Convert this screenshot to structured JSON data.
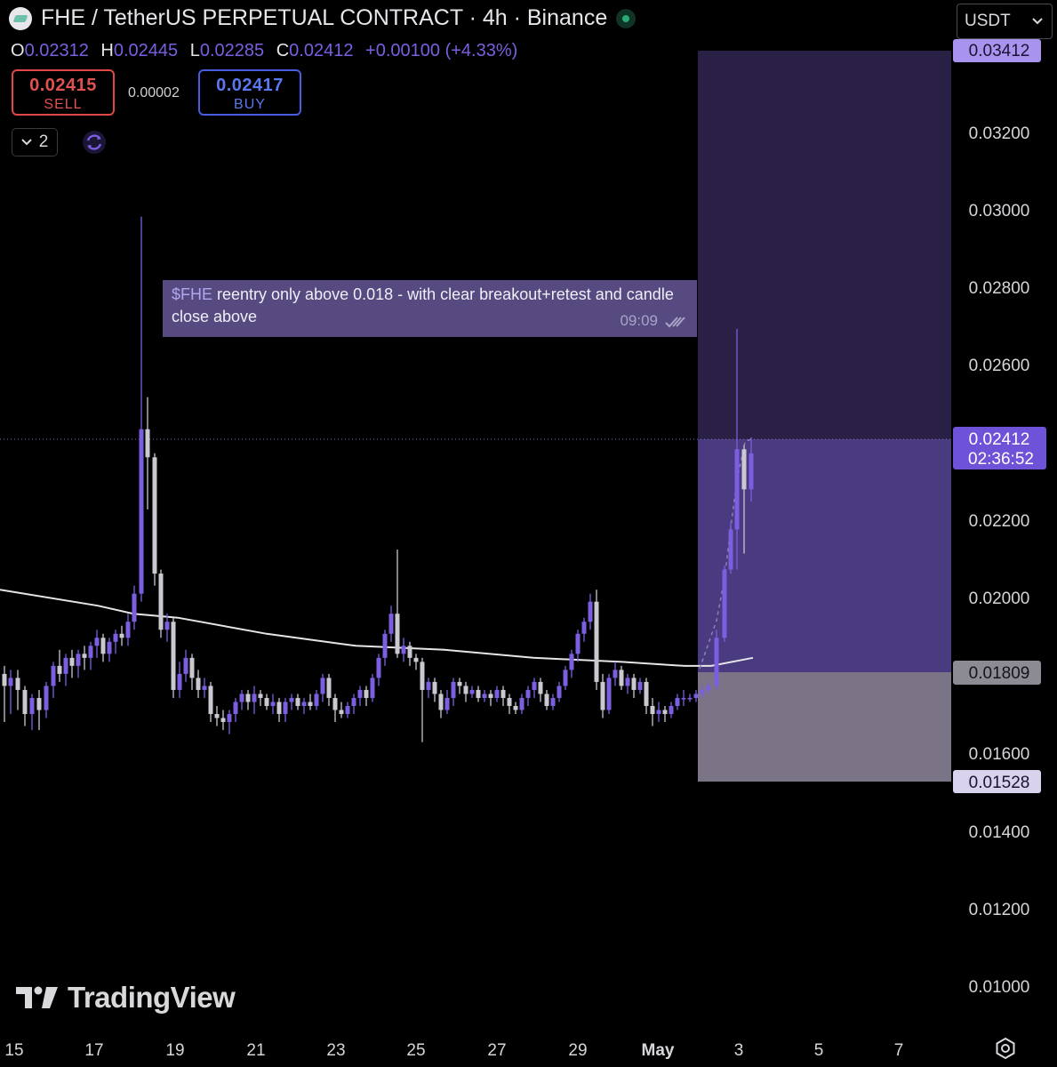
{
  "header": {
    "title": "FHE / TetherUS PERPETUAL CONTRACT · 4h · Binance",
    "currency": "USDT"
  },
  "ohlc": {
    "open_label": "O",
    "open": "0.02312",
    "high_label": "H",
    "high": "0.02445",
    "low_label": "L",
    "low": "0.02285",
    "close_label": "C",
    "close": "0.02412",
    "change": "+0.00100 (+4.33%)"
  },
  "trade": {
    "sell_price": "0.02415",
    "sell_label": "SELL",
    "spread": "0.00002",
    "buy_price": "0.02417",
    "buy_label": "BUY"
  },
  "indicators_count": "2",
  "note": {
    "ticker": "$FHE",
    "text": " reentry only above 0.018 - with clear breakout+retest and candle close above",
    "time": "09:09"
  },
  "branding": "TradingView",
  "colors": {
    "accent": "#7b5fe0",
    "sell": "#e05252",
    "buy": "#5b78f0",
    "profit_zone": "#4a3a80",
    "loss_zone": "#7a7486"
  },
  "chart_data": {
    "type": "candlestick",
    "y_ticks": [
      "0.03200",
      "0.03000",
      "0.02800",
      "0.02600",
      "0.02200",
      "0.02000",
      "0.01600",
      "0.01400",
      "0.01200",
      "0.01000"
    ],
    "x_ticks": [
      "15",
      "17",
      "19",
      "21",
      "23",
      "25",
      "27",
      "29",
      "May",
      "3",
      "5",
      "7"
    ],
    "ylim": [
      0.0088,
      0.0354
    ],
    "price_labels": {
      "current_price": "0.02412",
      "countdown": "02:36:52",
      "target": "0.03412",
      "entry": "0.01809",
      "stop": "0.01528"
    },
    "position": {
      "type": "long",
      "entry": 0.01809,
      "target": 0.03412,
      "stop": 0.01528
    },
    "moving_average": [
      [
        0,
        0.0207
      ],
      [
        110,
        0.0203
      ],
      [
        150,
        0.0201
      ],
      [
        200,
        0.02
      ],
      [
        300,
        0.0196
      ],
      [
        400,
        0.0193
      ],
      [
        500,
        0.0192
      ],
      [
        600,
        0.019
      ],
      [
        700,
        0.0189
      ],
      [
        770,
        0.0188
      ],
      [
        800,
        0.0188
      ],
      [
        847,
        0.019
      ]
    ],
    "candles": [
      [
        5,
        0.0186,
        0.0183,
        0.0188,
        0.0174
      ],
      [
        12,
        0.0183,
        0.0185,
        0.0187,
        0.0176
      ],
      [
        20,
        0.0185,
        0.0182,
        0.0187,
        0.0177
      ],
      [
        28,
        0.0182,
        0.0176,
        0.0183,
        0.0173
      ],
      [
        36,
        0.0176,
        0.018,
        0.0181,
        0.0172
      ],
      [
        44,
        0.018,
        0.0177,
        0.0182,
        0.0172
      ],
      [
        52,
        0.0177,
        0.0183,
        0.0184,
        0.0175
      ],
      [
        60,
        0.0183,
        0.0188,
        0.0189,
        0.018
      ],
      [
        67,
        0.0188,
        0.0186,
        0.0192,
        0.0184
      ],
      [
        74,
        0.0186,
        0.019,
        0.0191,
        0.0183
      ],
      [
        81,
        0.019,
        0.0188,
        0.0192,
        0.0185
      ],
      [
        88,
        0.0188,
        0.0191,
        0.0192,
        0.0185
      ],
      [
        95,
        0.0191,
        0.019,
        0.0193,
        0.0187
      ],
      [
        102,
        0.019,
        0.0193,
        0.0194,
        0.0187
      ],
      [
        109,
        0.0193,
        0.0195,
        0.0197,
        0.019
      ],
      [
        116,
        0.0195,
        0.0191,
        0.0196,
        0.0189
      ],
      [
        123,
        0.0191,
        0.0194,
        0.0195,
        0.0189
      ],
      [
        130,
        0.0194,
        0.0196,
        0.0197,
        0.0191
      ],
      [
        137,
        0.0196,
        0.0195,
        0.0198,
        0.0193
      ],
      [
        144,
        0.0195,
        0.0199,
        0.0201,
        0.0193
      ],
      [
        151,
        0.0199,
        0.0206,
        0.0208,
        0.0197
      ],
      [
        159,
        0.0206,
        0.0247,
        0.03,
        0.0204
      ],
      [
        166,
        0.0247,
        0.024,
        0.0255,
        0.0227
      ],
      [
        174,
        0.024,
        0.0211,
        0.0241,
        0.0208
      ],
      [
        181,
        0.0211,
        0.0197,
        0.0212,
        0.0195
      ],
      [
        188,
        0.0197,
        0.0199,
        0.0201,
        0.0194
      ],
      [
        195,
        0.0199,
        0.0182,
        0.02,
        0.018
      ],
      [
        202,
        0.0182,
        0.0186,
        0.0189,
        0.018
      ],
      [
        209,
        0.0186,
        0.019,
        0.0192,
        0.0184
      ],
      [
        216,
        0.019,
        0.0185,
        0.0191,
        0.0182
      ],
      [
        223,
        0.0185,
        0.0182,
        0.0187,
        0.018
      ],
      [
        230,
        0.0182,
        0.0183,
        0.0185,
        0.018
      ],
      [
        237,
        0.0183,
        0.0176,
        0.0184,
        0.0174
      ],
      [
        244,
        0.0176,
        0.0175,
        0.0178,
        0.0173
      ],
      [
        251,
        0.0175,
        0.0174,
        0.0177,
        0.0172
      ],
      [
        258,
        0.0174,
        0.0176,
        0.0177,
        0.0171
      ],
      [
        265,
        0.0176,
        0.0179,
        0.018,
        0.0174
      ],
      [
        272,
        0.0179,
        0.0181,
        0.0182,
        0.0177
      ],
      [
        279,
        0.0181,
        0.0179,
        0.0182,
        0.0177
      ],
      [
        286,
        0.0179,
        0.0181,
        0.0183,
        0.0176
      ],
      [
        293,
        0.0181,
        0.018,
        0.0182,
        0.0178
      ],
      [
        300,
        0.018,
        0.0178,
        0.0181,
        0.0177
      ],
      [
        307,
        0.0178,
        0.0179,
        0.0181,
        0.0176
      ],
      [
        314,
        0.0179,
        0.0176,
        0.018,
        0.0174
      ],
      [
        321,
        0.0176,
        0.0179,
        0.018,
        0.0174
      ],
      [
        328,
        0.0179,
        0.018,
        0.0181,
        0.0177
      ],
      [
        335,
        0.018,
        0.0178,
        0.0181,
        0.0177
      ],
      [
        342,
        0.0178,
        0.0179,
        0.018,
        0.0176
      ],
      [
        349,
        0.0179,
        0.0178,
        0.0181,
        0.0177
      ],
      [
        356,
        0.0178,
        0.0181,
        0.0182,
        0.0177
      ],
      [
        363,
        0.0181,
        0.0185,
        0.0186,
        0.0179
      ],
      [
        370,
        0.0185,
        0.018,
        0.0186,
        0.0178
      ],
      [
        377,
        0.018,
        0.0177,
        0.0181,
        0.0174
      ],
      [
        384,
        0.0177,
        0.0176,
        0.0179,
        0.0175
      ],
      [
        391,
        0.0176,
        0.0178,
        0.0179,
        0.0175
      ],
      [
        398,
        0.0178,
        0.018,
        0.0181,
        0.0176
      ],
      [
        405,
        0.018,
        0.0182,
        0.0183,
        0.0178
      ],
      [
        412,
        0.0182,
        0.018,
        0.0183,
        0.0178
      ],
      [
        419,
        0.018,
        0.0185,
        0.0186,
        0.0179
      ],
      [
        426,
        0.0185,
        0.019,
        0.0191,
        0.0183
      ],
      [
        433,
        0.019,
        0.0196,
        0.0197,
        0.0188
      ],
      [
        440,
        0.0196,
        0.0201,
        0.0203,
        0.0194
      ],
      [
        447,
        0.0201,
        0.0191,
        0.0217,
        0.019
      ],
      [
        454,
        0.0191,
        0.0193,
        0.0195,
        0.0189
      ],
      [
        461,
        0.0193,
        0.019,
        0.0194,
        0.0188
      ],
      [
        468,
        0.019,
        0.0189,
        0.0191,
        0.0187
      ],
      [
        475,
        0.0189,
        0.0182,
        0.019,
        0.0169
      ],
      [
        482,
        0.0182,
        0.0184,
        0.0185,
        0.018
      ],
      [
        489,
        0.0184,
        0.0181,
        0.0185,
        0.0179
      ],
      [
        496,
        0.0181,
        0.0177,
        0.0182,
        0.0175
      ],
      [
        503,
        0.0177,
        0.018,
        0.0182,
        0.0176
      ],
      [
        510,
        0.018,
        0.0184,
        0.0185,
        0.0178
      ],
      [
        517,
        0.0184,
        0.0183,
        0.0185,
        0.0181
      ],
      [
        524,
        0.0183,
        0.0181,
        0.0184,
        0.0179
      ],
      [
        531,
        0.0181,
        0.0182,
        0.0183,
        0.018
      ],
      [
        538,
        0.0182,
        0.018,
        0.0183,
        0.0179
      ],
      [
        545,
        0.018,
        0.0181,
        0.0182,
        0.0179
      ],
      [
        552,
        0.0181,
        0.018,
        0.0182,
        0.0178
      ],
      [
        559,
        0.018,
        0.0182,
        0.0183,
        0.0179
      ],
      [
        566,
        0.0182,
        0.018,
        0.0183,
        0.0178
      ],
      [
        573,
        0.018,
        0.0178,
        0.0181,
        0.0176
      ],
      [
        580,
        0.0178,
        0.0177,
        0.0179,
        0.0176
      ],
      [
        587,
        0.0177,
        0.018,
        0.0181,
        0.0176
      ],
      [
        594,
        0.018,
        0.0182,
        0.0183,
        0.0178
      ],
      [
        601,
        0.0182,
        0.0184,
        0.0185,
        0.018
      ],
      [
        608,
        0.0184,
        0.0181,
        0.0185,
        0.0179
      ],
      [
        615,
        0.0181,
        0.0178,
        0.0182,
        0.0177
      ],
      [
        622,
        0.0178,
        0.018,
        0.0181,
        0.0177
      ],
      [
        629,
        0.018,
        0.0183,
        0.0184,
        0.0179
      ],
      [
        636,
        0.0183,
        0.0187,
        0.0188,
        0.0182
      ],
      [
        643,
        0.0187,
        0.0191,
        0.0192,
        0.0185
      ],
      [
        650,
        0.0191,
        0.0196,
        0.0197,
        0.0189
      ],
      [
        657,
        0.0196,
        0.0199,
        0.02,
        0.0194
      ],
      [
        664,
        0.0199,
        0.0204,
        0.0206,
        0.0197
      ],
      [
        671,
        0.0204,
        0.0184,
        0.0207,
        0.0182
      ],
      [
        678,
        0.0184,
        0.0177,
        0.0186,
        0.0175
      ],
      [
        685,
        0.0177,
        0.0185,
        0.0186,
        0.0176
      ],
      [
        692,
        0.0185,
        0.0187,
        0.0189,
        0.0183
      ],
      [
        699,
        0.0187,
        0.0183,
        0.0188,
        0.0182
      ],
      [
        706,
        0.0183,
        0.0185,
        0.0186,
        0.0181
      ],
      [
        713,
        0.0185,
        0.0182,
        0.0186,
        0.018
      ],
      [
        720,
        0.0182,
        0.0184,
        0.0185,
        0.0181
      ],
      [
        727,
        0.0184,
        0.0178,
        0.0185,
        0.0176
      ],
      [
        734,
        0.0178,
        0.0176,
        0.018,
        0.0173
      ],
      [
        741,
        0.0176,
        0.0177,
        0.0179,
        0.0174
      ],
      [
        748,
        0.0177,
        0.0176,
        0.0178,
        0.0174
      ],
      [
        755,
        0.0176,
        0.0178,
        0.0179,
        0.0175
      ],
      [
        762,
        0.0178,
        0.018,
        0.0181,
        0.0177
      ],
      [
        769,
        0.018,
        0.018,
        0.0182,
        0.0178
      ],
      [
        776,
        0.018,
        0.018,
        0.0181,
        0.0179
      ],
      [
        783,
        0.018,
        0.0181,
        0.0182,
        0.0179
      ],
      [
        790,
        0.0181,
        0.0182,
        0.0183,
        0.018
      ],
      [
        797,
        0.0182,
        0.0183,
        0.0184,
        0.0181
      ],
      [
        806,
        0.0183,
        0.0195,
        0.0197,
        0.0182
      ],
      [
        815,
        0.0195,
        0.0212,
        0.0213,
        0.0194
      ],
      [
        822,
        0.0212,
        0.0222,
        0.0224,
        0.0211
      ],
      [
        829,
        0.0222,
        0.0242,
        0.0272,
        0.0212
      ],
      [
        837,
        0.0242,
        0.0232,
        0.0243,
        0.0216
      ],
      [
        845,
        0.0232,
        0.0241,
        0.0245,
        0.0229
      ]
    ]
  }
}
